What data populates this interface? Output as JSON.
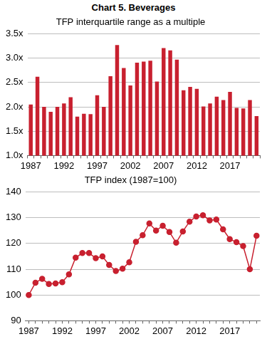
{
  "title": "Chart 5. Beverages",
  "chart_data": [
    {
      "type": "bar",
      "title": "TFP interquartile range as a multiple",
      "categories": [
        "1987",
        null,
        null,
        null,
        null,
        "1992",
        null,
        null,
        null,
        null,
        "1997",
        null,
        null,
        null,
        null,
        "2002",
        null,
        null,
        null,
        null,
        "2007",
        null,
        null,
        null,
        null,
        "2012",
        null,
        null,
        null,
        null,
        "2017",
        null,
        null,
        null,
        null
      ],
      "values": [
        2.05,
        2.62,
        2.0,
        1.9,
        2.0,
        2.07,
        2.2,
        1.8,
        1.86,
        1.85,
        2.24,
        2.0,
        2.63,
        3.27,
        2.8,
        2.44,
        2.91,
        2.93,
        2.95,
        2.52,
        3.21,
        3.16,
        2.97,
        2.34,
        2.41,
        2.37,
        2.01,
        2.07,
        2.21,
        2.14,
        2.31,
        1.98,
        1.97,
        2.14,
        1.81
      ],
      "color": "#c8202f",
      "ylim": [
        1.0,
        3.5
      ],
      "yticks": [
        {
          "value": 1.0,
          "label": "1.0x"
        },
        {
          "value": 1.5,
          "label": "1.5x"
        },
        {
          "value": 2.0,
          "label": "2.0x"
        },
        {
          "value": 2.5,
          "label": "2.5x"
        },
        {
          "value": 3.0,
          "label": "3.0x"
        },
        {
          "value": 3.5,
          "label": "3.5x"
        }
      ],
      "grid": true
    },
    {
      "type": "line",
      "title": "TFP index (1987=100)",
      "categories": [
        "1987",
        null,
        null,
        null,
        null,
        "1992",
        null,
        null,
        null,
        null,
        "1997",
        null,
        null,
        null,
        null,
        "2002",
        null,
        null,
        null,
        null,
        "2007",
        null,
        null,
        null,
        null,
        "2012",
        null,
        null,
        null,
        null,
        "2017",
        null,
        null,
        null,
        null
      ],
      "values": [
        100,
        104.8,
        106.3,
        104.3,
        104.5,
        105,
        108,
        114.5,
        116.3,
        116.3,
        114.3,
        115,
        111.7,
        109.3,
        110.2,
        112.7,
        120.7,
        123.2,
        127.8,
        125,
        126.9,
        124.5,
        120.3,
        124.7,
        128.5,
        130.5,
        131,
        129,
        129.3,
        125.5,
        121.7,
        120.5,
        119,
        110,
        123
      ],
      "color": "#c8202f",
      "marker": "circle",
      "ylim": [
        90,
        140
      ],
      "yticks": [
        90,
        100,
        110,
        120,
        130,
        140
      ],
      "grid": true
    }
  ]
}
